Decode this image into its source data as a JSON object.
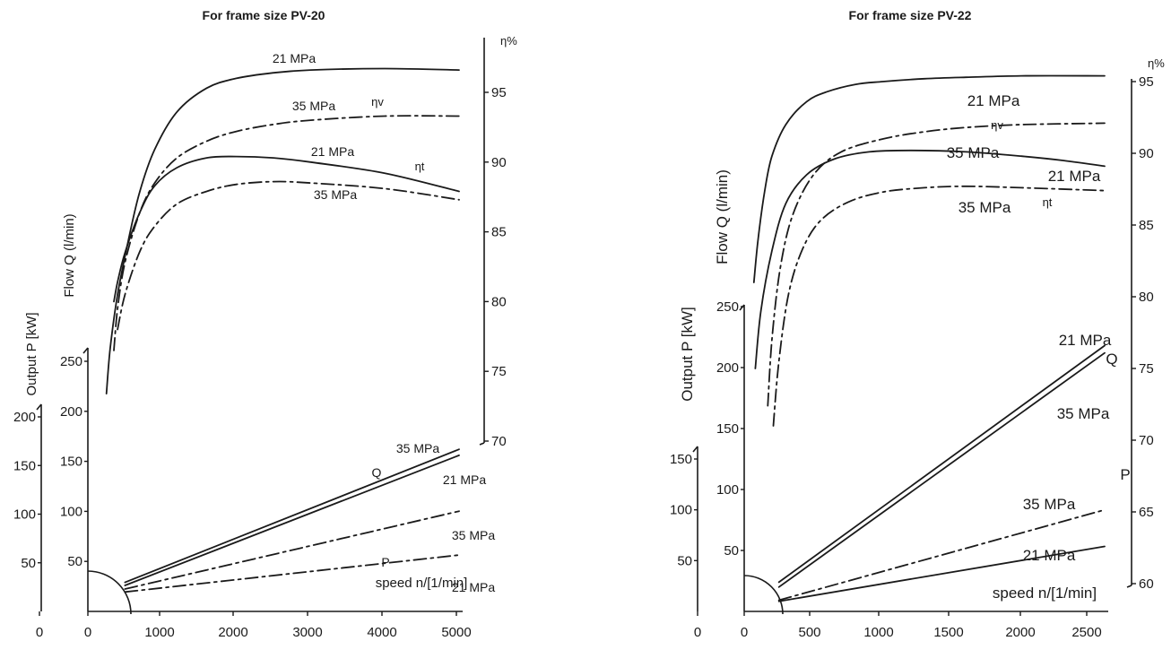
{
  "chart_data": [
    {
      "type": "line",
      "title": "For frame size PV-20",
      "xlabel": "speed n/[1/min]",
      "ylabel_power": "Output P [kW]",
      "ylabel_flow": "Flow Q (l/min)",
      "ylabel_eff": "η%",
      "x_ticks": [
        "0",
        "0",
        "1000",
        "2000",
        "3000",
        "4000",
        "5000"
      ],
      "power_ticks": [
        "50",
        "100",
        "150",
        "200"
      ],
      "flow_ticks": [
        "50",
        "100",
        "150",
        "200",
        "250"
      ],
      "eff_ticks": [
        "70",
        "75",
        "80",
        "85",
        "90",
        "95"
      ],
      "xlim": [
        0,
        5000
      ],
      "power_lim": [
        0,
        200
      ],
      "flow_lim": [
        0,
        250
      ],
      "eff_lim": [
        70,
        97
      ],
      "series": [
        {
          "label": "21 MPa",
          "group": "ηv",
          "style": "solid",
          "axis": "eff",
          "x": [
            250,
            300,
            400,
            550,
            700,
            900,
            1200,
            1600,
            2000,
            2500,
            3000,
            4000,
            5000
          ],
          "y": [
            73.4,
            76.6,
            80.5,
            84.5,
            87.9,
            90.9,
            93.6,
            95.3,
            96.0,
            96.4,
            96.6,
            96.7,
            96.6
          ]
        },
        {
          "label": "35 MPa",
          "group": "ηv",
          "style": "dashdot",
          "axis": "eff",
          "x": [
            350,
            400,
            500,
            700,
            900,
            1200,
            1600,
            2000,
            2500,
            3000,
            4000,
            5000
          ],
          "y": [
            76.5,
            79.5,
            82.8,
            86.4,
            88.5,
            90.3,
            91.5,
            92.2,
            92.7,
            93.0,
            93.3,
            93.3
          ]
        },
        {
          "label": "21 MPa",
          "group": "ηt",
          "style": "solid",
          "axis": "eff",
          "x": [
            350,
            400,
            500,
            700,
            900,
            1200,
            1600,
            2000,
            2500,
            3000,
            4000,
            5000
          ],
          "y": [
            80.0,
            81.4,
            83.5,
            86.4,
            88.3,
            89.6,
            90.3,
            90.4,
            90.3,
            90.0,
            89.2,
            87.9
          ]
        },
        {
          "label": "35 MPa",
          "group": "ηt",
          "style": "dashdot",
          "axis": "eff",
          "x": [
            400,
            500,
            700,
            900,
            1200,
            1600,
            2000,
            2500,
            3000,
            4000,
            5000
          ],
          "y": [
            78.0,
            80.5,
            83.6,
            85.4,
            87.0,
            87.9,
            88.4,
            88.6,
            88.5,
            88.1,
            87.3
          ]
        },
        {
          "label": "35 MPa",
          "group": "Q",
          "style": "solid",
          "axis": "flow",
          "x": [
            500,
            5000
          ],
          "y": [
            29,
            162
          ]
        },
        {
          "label": "21 MPa",
          "group": "Q",
          "style": "solid",
          "axis": "flow",
          "x": [
            500,
            5000
          ],
          "y": [
            26,
            156
          ]
        },
        {
          "label": "35 MPa",
          "group": "P",
          "style": "dashdot",
          "axis": "power",
          "x": [
            500,
            5000
          ],
          "y": [
            23,
            103
          ]
        },
        {
          "label": "21 MPa",
          "group": "P",
          "style": "dashdot",
          "axis": "power",
          "x": [
            500,
            5000
          ],
          "y": [
            20,
            58
          ]
        }
      ],
      "annotations": [
        "21 MPa",
        "35 MPa",
        "ηv",
        "21 MPa",
        "ηt",
        "35 MPa",
        "35 MPa",
        "Q",
        "21 MPa",
        "35 MPa",
        "P",
        "21 MPa"
      ]
    },
    {
      "type": "line",
      "title": "For frame size PV-22",
      "xlabel": "speed n/[1/min]",
      "ylabel_power": "Output P [kW]",
      "ylabel_flow": "Flow Q  (l/min)",
      "ylabel_eff": "η%",
      "x_ticks": [
        "0",
        "0",
        "500",
        "1000",
        "1500",
        "2000",
        "2500"
      ],
      "power_ticks": [
        "50",
        "100",
        "150"
      ],
      "flow_ticks": [
        "50",
        "100",
        "150",
        "200",
        "250"
      ],
      "eff_ticks": [
        "60",
        "65",
        "70",
        "75",
        "80",
        "85",
        "90",
        "95"
      ],
      "xlim": [
        0,
        2600
      ],
      "power_lim": [
        0,
        150
      ],
      "flow_lim": [
        0,
        250
      ],
      "eff_lim": [
        60,
        97
      ],
      "series": [
        {
          "label": "21 MPa",
          "group": "ηv",
          "style": "solid",
          "axis": "eff",
          "x": [
            70,
            100,
            150,
            200,
            300,
            450,
            600,
            800,
            1000,
            1300,
            1600,
            2000,
            2600
          ],
          "y": [
            81.0,
            84.0,
            87.5,
            89.8,
            92.0,
            93.6,
            94.3,
            94.8,
            95.0,
            95.2,
            95.3,
            95.4,
            95.4
          ]
        },
        {
          "label": "35 MPa",
          "group": "ηv",
          "style": "dashdot",
          "axis": "eff",
          "x": [
            170,
            200,
            260,
            350,
            500,
            700,
            1000,
            1300,
            1600,
            2000,
            2600
          ],
          "y": [
            72.4,
            77.0,
            82.0,
            85.7,
            88.5,
            90.1,
            91.0,
            91.5,
            91.8,
            92.0,
            92.1
          ]
        },
        {
          "label": "21 MPa",
          "group": "ηt",
          "style": "solid",
          "axis": "eff",
          "x": [
            80,
            120,
            200,
            300,
            450,
            650,
            900,
            1200,
            1600,
            2000,
            2300,
            2600
          ],
          "y": [
            75.0,
            79.0,
            83.2,
            86.5,
            88.5,
            89.6,
            90.1,
            90.2,
            90.1,
            89.8,
            89.5,
            89.1
          ]
        },
        {
          "label": "35 MPa",
          "group": "ηt",
          "style": "dashdot",
          "axis": "eff",
          "x": [
            210,
            250,
            320,
            420,
            550,
            750,
            1000,
            1300,
            1600,
            2000,
            2600
          ],
          "y": [
            71.0,
            75.5,
            80.2,
            83.3,
            85.3,
            86.6,
            87.3,
            87.6,
            87.7,
            87.6,
            87.4
          ]
        },
        {
          "label": "21 MPa",
          "group": "Q",
          "style": "solid",
          "axis": "flow",
          "x": [
            250,
            2600
          ],
          "y": [
            24,
            218
          ]
        },
        {
          "label": "21 MPa",
          "group": "Q",
          "style": "solid",
          "axis": "flow",
          "x": [
            250,
            2600
          ],
          "y": [
            20,
            212
          ]
        },
        {
          "label": "35 MPa",
          "group": "P",
          "style": "dashdot",
          "axis": "power",
          "x": [
            250,
            2600
          ],
          "y": [
            11,
            100
          ]
        },
        {
          "label": "21 MPa",
          "group": "P",
          "style": "solid",
          "axis": "power",
          "x": [
            250,
            2600
          ],
          "y": [
            10,
            64
          ]
        }
      ],
      "annotations": [
        "21 MPa",
        "ηv",
        "35 MPa",
        "21 MPa",
        "ηt",
        "35 MPa",
        "21 MPa",
        "Q",
        "35 MPa",
        "P",
        "35 MPa",
        "21 MPa"
      ]
    }
  ]
}
